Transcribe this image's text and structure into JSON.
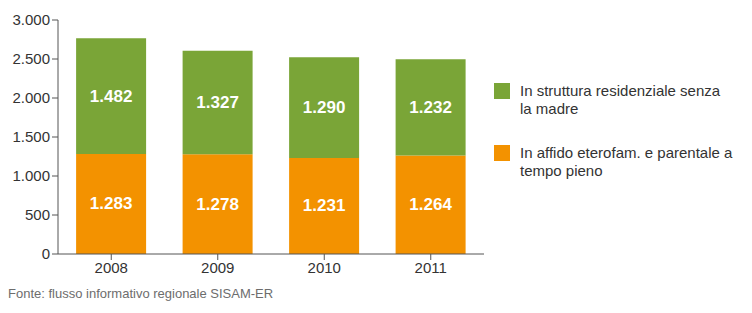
{
  "chart_data": {
    "type": "bar",
    "stacked": true,
    "data_labels": true,
    "grid": false,
    "legend": "right",
    "source": "Fonte: flusso informativo regionale SISAM-ER",
    "categories": [
      "2008",
      "2009",
      "2010",
      "2011"
    ],
    "ylim": [
      0,
      3000
    ],
    "yticks": [
      0,
      500,
      {
        "value": 1000,
        "label": "1.000"
      },
      {
        "value": 1500,
        "label": "1.500"
      },
      {
        "value": 2000,
        "label": "2.000"
      },
      {
        "value": 2500,
        "label": "2.500"
      },
      {
        "value": 3000,
        "label": "3.000"
      }
    ],
    "series": [
      {
        "name": "In affido eterofam. e parentale a tempo pieno",
        "color": "#f39200",
        "values": [
          1283,
          1278,
          1231,
          1264
        ],
        "value_labels": [
          "1.283",
          "1.278",
          "1.231",
          "1.264"
        ]
      },
      {
        "name": "In struttura residenziale senza la madre",
        "color": "#7aa537",
        "values": [
          1482,
          1327,
          1290,
          1232
        ],
        "value_labels": [
          "1.482",
          "1.327",
          "1.290",
          "1.232"
        ]
      }
    ]
  }
}
